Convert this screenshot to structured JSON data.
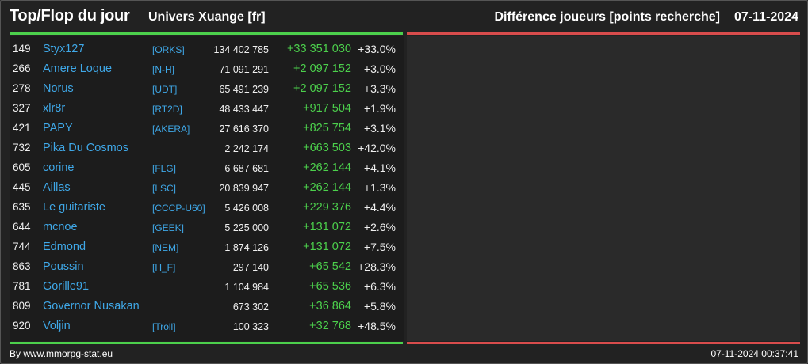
{
  "header": {
    "title": "Top/Flop du jour",
    "subtitle": "Univers Xuange [fr]",
    "right_title": "Différence joueurs [points recherche]",
    "date": "07-11-2024"
  },
  "colors": {
    "top_bar": "#4cd04c",
    "flop_bar": "#d84c4c",
    "name_link": "#3fa8e8",
    "positive": "#4cd04c"
  },
  "rows": [
    {
      "rank": "149",
      "name": "Styx127",
      "ally": "[ORKS]",
      "points": "134 402 785",
      "diff": "+33 351 030",
      "pct": "+33.0%"
    },
    {
      "rank": "266",
      "name": "Amere Loque",
      "ally": "[N-H]",
      "points": "71 091 291",
      "diff": "+2 097 152",
      "pct": "+3.0%"
    },
    {
      "rank": "278",
      "name": "Norus",
      "ally": "[UDT]",
      "points": "65 491 239",
      "diff": "+2 097 152",
      "pct": "+3.3%"
    },
    {
      "rank": "327",
      "name": "xlr8r",
      "ally": "[RT2D]",
      "points": "48 433 447",
      "diff": "+917 504",
      "pct": "+1.9%"
    },
    {
      "rank": "421",
      "name": "PAPY",
      "ally": "[AKERA]",
      "points": "27 616 370",
      "diff": "+825 754",
      "pct": "+3.1%"
    },
    {
      "rank": "732",
      "name": "Pika Du Cosmos",
      "ally": "",
      "points": "2 242 174",
      "diff": "+663 503",
      "pct": "+42.0%"
    },
    {
      "rank": "605",
      "name": "corine",
      "ally": "[FLG]",
      "points": "6 687 681",
      "diff": "+262 144",
      "pct": "+4.1%"
    },
    {
      "rank": "445",
      "name": "Aillas",
      "ally": "[LSC]",
      "points": "20 839 947",
      "diff": "+262 144",
      "pct": "+1.3%"
    },
    {
      "rank": "635",
      "name": "Le guitariste",
      "ally": "[CCCP-U60]",
      "points": "5 426 008",
      "diff": "+229 376",
      "pct": "+4.4%"
    },
    {
      "rank": "644",
      "name": "mcnoe",
      "ally": "[GEEK]",
      "points": "5 225 000",
      "diff": "+131 072",
      "pct": "+2.6%"
    },
    {
      "rank": "744",
      "name": "Edmond",
      "ally": "[NEM]",
      "points": "1 874 126",
      "diff": "+131 072",
      "pct": "+7.5%"
    },
    {
      "rank": "863",
      "name": "Poussin",
      "ally": "[H_F]",
      "points": "297 140",
      "diff": "+65 542",
      "pct": "+28.3%"
    },
    {
      "rank": "781",
      "name": "Gorille91",
      "ally": "",
      "points": "1 104 984",
      "diff": "+65 536",
      "pct": "+6.3%"
    },
    {
      "rank": "809",
      "name": "Governor Nusakan",
      "ally": "",
      "points": "673 302",
      "diff": "+36 864",
      "pct": "+5.8%"
    },
    {
      "rank": "920",
      "name": "Voljin",
      "ally": "[Troll]",
      "points": "100 323",
      "diff": "+32 768",
      "pct": "+48.5%"
    }
  ],
  "footer": {
    "credit": "By www.mmorpg-stat.eu",
    "timestamp": "07-11-2024 00:37:41"
  }
}
